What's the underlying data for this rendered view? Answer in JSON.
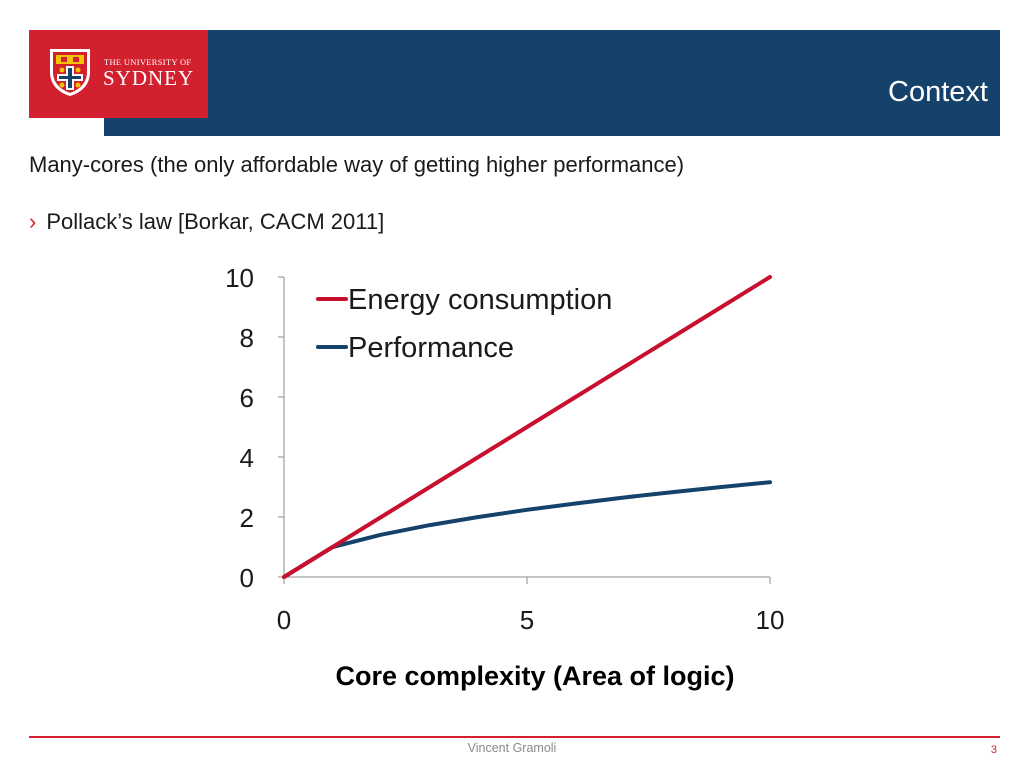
{
  "slide": {
    "title": "Context",
    "line1": "Many-cores (the only affordable way of getting higher performance)",
    "bullet_symbol": "›",
    "bullet": "Pollack’s law [Borkar, CACM 2011]"
  },
  "logo": {
    "line1": "THE UNIVERSITY OF",
    "line2": "SYDNEY"
  },
  "footer": {
    "author": "Vincent Gramoli",
    "page": "3"
  },
  "colors": {
    "header_blue": "#14426b",
    "brand_red": "#d3202f",
    "performance_blue": "#14426b",
    "energy_red": "#c8102e"
  },
  "chart_data": {
    "type": "line",
    "title": "",
    "xlabel": "Core complexity (Area of logic)",
    "ylabel": "",
    "xlim": [
      0,
      10
    ],
    "ylim": [
      0,
      10
    ],
    "xticks": [
      0,
      5,
      10
    ],
    "yticks": [
      0,
      2,
      4,
      6,
      8,
      10
    ],
    "grid": false,
    "legend_position": "top-left",
    "series": [
      {
        "name": "Energy consumption",
        "color": "#c8102e",
        "x": [
          0,
          1,
          2,
          3,
          4,
          5,
          6,
          7,
          8,
          9,
          10
        ],
        "y": [
          0,
          1,
          2,
          3,
          4,
          5,
          6,
          7,
          8,
          9,
          10
        ]
      },
      {
        "name": "Performance",
        "color": "#14426b",
        "x": [
          0,
          1,
          2,
          3,
          4,
          5,
          6,
          7,
          8,
          9,
          10
        ],
        "y": [
          0,
          1,
          1.41,
          1.73,
          2,
          2.24,
          2.45,
          2.65,
          2.83,
          3,
          3.16
        ]
      }
    ]
  }
}
